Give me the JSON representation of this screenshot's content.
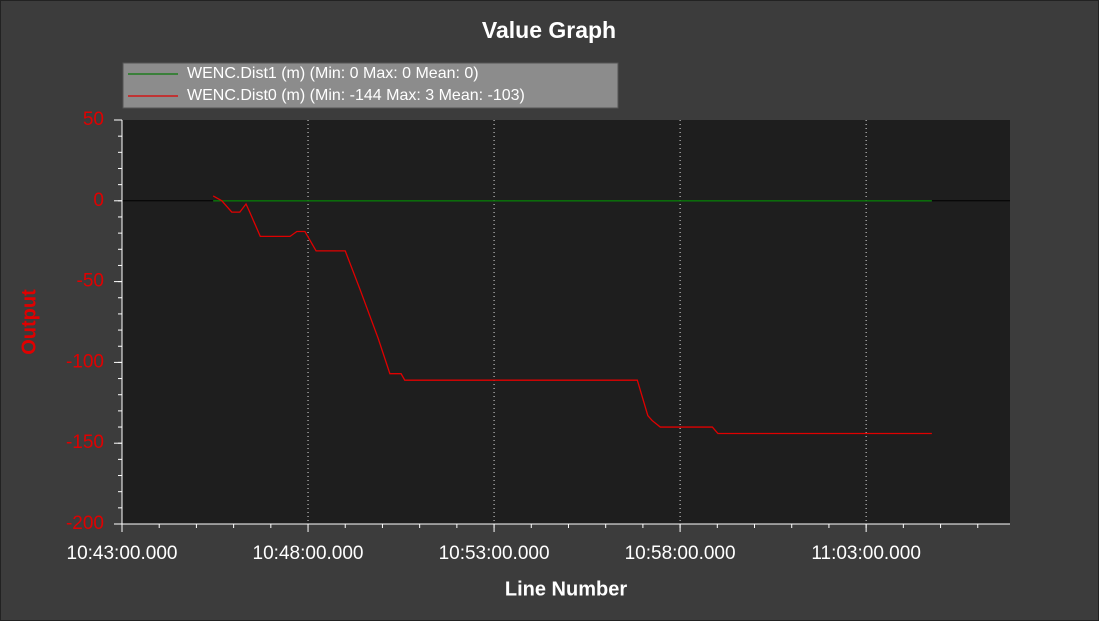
{
  "chart_data": {
    "type": "line",
    "title": "Value Graph",
    "x_label": "Line Number",
    "y_label": "Output",
    "x": [
      "10:45:27.000",
      "10:45:41.000",
      "10:45:57.000",
      "10:46:10.000",
      "10:46:20.000",
      "10:46:26.000",
      "10:46:43.000",
      "10:47:31.000",
      "10:47:42.000",
      "10:47:55.000",
      "10:48:13.000",
      "10:49:00.000",
      "10:49:24.000",
      "10:49:53.000",
      "10:50:12.000",
      "10:50:30.000",
      "10:50:36.000",
      "10:56:51.000",
      "10:57:08.000",
      "10:57:15.000",
      "10:57:28.000",
      "10:58:52.000",
      "10:59:01.000",
      "11:04:46.000"
    ],
    "series": [
      {
        "name": "WENC.Dist1 (m) (Min: 0 Max: 0 Mean: 0)",
        "color": "#0a7a0a",
        "values": [
          0,
          0,
          0,
          0,
          0,
          0,
          0,
          0,
          0,
          0,
          0,
          0,
          0,
          0,
          0,
          0,
          0,
          0,
          0,
          0,
          0,
          0,
          0,
          0
        ]
      },
      {
        "name": "WENC.Dist0 (m) (Min: -144 Max: 3 Mean: -103)",
        "color": "#e00000",
        "values": [
          3,
          0,
          -7,
          -7,
          -2,
          -7,
          -22,
          -22,
          -19,
          -19,
          -31,
          -31,
          -55,
          -85,
          -107,
          -107,
          -111,
          -111,
          -133,
          -136,
          -140,
          -140,
          -144,
          -144
        ]
      }
    ],
    "xlim": [
      "10:43:00.000",
      "11:06:52.000"
    ],
    "xticks": [
      "10:43:00.000",
      "10:48:00.000",
      "10:53:00.000",
      "10:58:00.000",
      "11:03:00.000"
    ],
    "ylim": [
      -200,
      50
    ],
    "yticks": [
      -200,
      -150,
      -100,
      -50,
      0,
      50
    ],
    "grid": true
  }
}
